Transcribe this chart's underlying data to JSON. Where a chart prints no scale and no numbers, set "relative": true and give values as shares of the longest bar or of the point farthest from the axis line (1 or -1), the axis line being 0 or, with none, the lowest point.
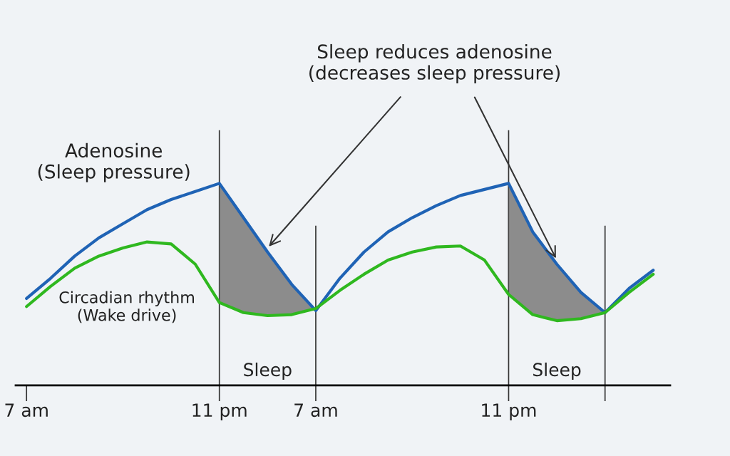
{
  "chart_data": {
    "type": "line",
    "relative": true,
    "categories": [
      "7 am",
      null,
      null,
      null,
      null,
      null,
      null,
      null,
      "11 pm",
      null,
      null,
      null,
      "7 am",
      null,
      null,
      null,
      null,
      null,
      null,
      null,
      "11 pm",
      null,
      null,
      null,
      null,
      null,
      null
    ],
    "series": [
      {
        "name": "Adenosine\n(Sleep pressure)",
        "color": "#1f63b5",
        "values": [
          0.43,
          0.53,
          0.64,
          0.73,
          0.8,
          0.87,
          0.92,
          0.96,
          1.0,
          0.83,
          0.66,
          0.5,
          0.37,
          0.53,
          0.66,
          0.76,
          0.83,
          0.89,
          0.94,
          0.97,
          1.0,
          0.76,
          0.6,
          0.46,
          0.36,
          0.48,
          0.57
        ],
        "upper": [
          null,
          null,
          null,
          null,
          null,
          null,
          null,
          null,
          1.0,
          0.83,
          0.66,
          0.5,
          0.37,
          null,
          null,
          null,
          null,
          null,
          null,
          null,
          1.0,
          0.76,
          0.6,
          0.46,
          0.36,
          null,
          null
        ],
        "lower": [
          null,
          null,
          null,
          null,
          null,
          null,
          null,
          null,
          0.41,
          0.36,
          0.345,
          0.35,
          0.38,
          null,
          null,
          null,
          null,
          null,
          null,
          null,
          0.45,
          0.35,
          0.32,
          0.33,
          0.36,
          null,
          null
        ]
      },
      {
        "name": "Circadian rhythm\n(Wake drive)",
        "color": "#2fb81f",
        "values": [
          0.39,
          0.49,
          0.58,
          0.64,
          0.68,
          0.71,
          0.7,
          0.6,
          0.41,
          0.36,
          0.345,
          0.35,
          0.38,
          0.47,
          0.55,
          0.62,
          0.66,
          0.685,
          0.69,
          0.62,
          0.45,
          0.35,
          0.32,
          0.33,
          0.36,
          0.46,
          0.55
        ]
      }
    ],
    "annotations": [
      "Sleep reduces adenosine\n(decreases sleep pressure)",
      "Sleep",
      "Sleep"
    ],
    "legend": "top left",
    "grid": "x"
  }
}
